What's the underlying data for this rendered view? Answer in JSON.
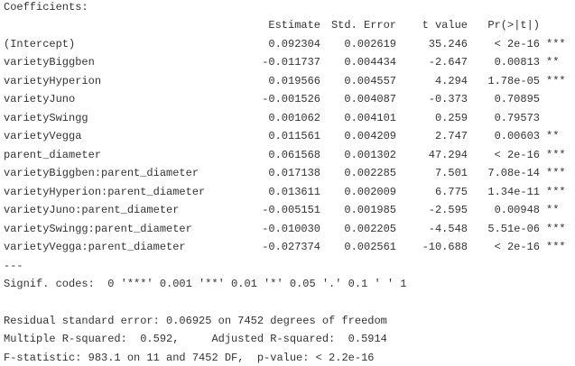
{
  "header": {
    "title": "Coefficients:"
  },
  "table": {
    "columns": [
      "Estimate",
      "Std. Error",
      "t value",
      "Pr(>|t|)"
    ],
    "rows": [
      [
        "(Intercept)",
        "0.092304",
        "0.002619",
        "35.246",
        "< 2e-16",
        "***"
      ],
      [
        "varietyBiggben",
        "-0.011737",
        "0.004434",
        "-2.647",
        "0.00813",
        "**"
      ],
      [
        "varietyHyperion",
        "0.019566",
        "0.004557",
        "4.294",
        "1.78e-05",
        "***"
      ],
      [
        "varietyJuno",
        "-0.001526",
        "0.004087",
        "-0.373",
        "0.70895"
      ],
      [
        "varietySwingg",
        "0.001062",
        "0.004101",
        "0.259",
        "0.79573"
      ],
      [
        "varietyVegga",
        "0.011561",
        "0.004209",
        "2.747",
        "0.00603",
        "**"
      ],
      [
        "parent_diameter",
        "0.061568",
        "0.001302",
        "47.294",
        "< 2e-16",
        "***"
      ],
      [
        "varietyBiggben:parent_diameter",
        "0.017138",
        "0.002285",
        "7.501",
        "7.08e-14",
        "***"
      ],
      [
        "varietyHyperion:parent_diameter",
        "0.013611",
        "0.002009",
        "6.775",
        "1.34e-11",
        "***"
      ],
      [
        "varietyJuno:parent_diameter",
        "-0.005151",
        "0.001985",
        "-2.595",
        "0.00948",
        "**"
      ],
      [
        "varietySwingg:parent_diameter",
        "-0.010030",
        "0.002205",
        "-4.548",
        "5.51e-06",
        "***"
      ],
      [
        "varietyVegga:parent_diameter",
        "-0.027374",
        "0.002561",
        "-10.688",
        "< 2e-16",
        "***"
      ]
    ]
  },
  "separator": "---",
  "signif_codes": "Signif. codes:  0 '***' 0.001 '**' 0.01 '*' 0.05 '.' 0.1 ' ' 1",
  "footer": [
    "Residual standard error: 0.06925 on 7452 degrees of freedom",
    "Multiple R-squared:  0.592,\tAdjusted R-squared:  0.5914 ",
    "F-statistic: 983.1 on 11 and 7452 DF,  p-value: < 2.2e-16"
  ]
}
